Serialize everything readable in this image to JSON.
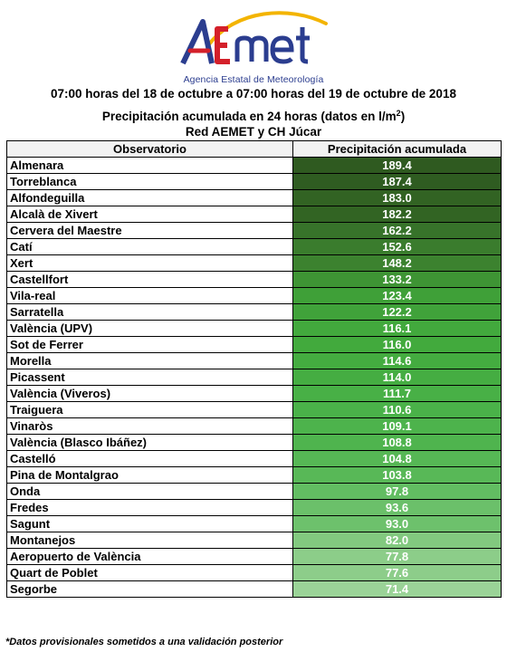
{
  "logo": {
    "text": "AEMet",
    "subtitle": "Agencia Estatal de Meteorología"
  },
  "header": {
    "line1": "07:00 horas del 18 de octubre a 07:00 horas del 19 de octubre de 2018",
    "line2_prefix": "Precipitación acumulada en 24 horas (datos en l/m",
    "line2_sup": "2",
    "line2_suffix": ")",
    "line3": "Red AEMET y CH Júcar"
  },
  "table": {
    "columns": [
      "Observatorio",
      "Precipitación acumulada"
    ],
    "rows": [
      {
        "name": "Almenara",
        "value": "189.4",
        "color": "#2f5a20"
      },
      {
        "name": "Torreblanca",
        "value": "187.4",
        "color": "#2f5c21"
      },
      {
        "name": "Alfondeguilla",
        "value": "183.0",
        "color": "#326323"
      },
      {
        "name": "Alcalà de Xivert",
        "value": "182.2",
        "color": "#326423"
      },
      {
        "name": "Cervera del Maestre",
        "value": "162.2",
        "color": "#37732a"
      },
      {
        "name": "Catí",
        "value": "152.6",
        "color": "#3a7c2d"
      },
      {
        "name": "Xert",
        "value": "148.2",
        "color": "#3c822f"
      },
      {
        "name": "Castellfort",
        "value": "133.2",
        "color": "#3e9434"
      },
      {
        "name": "Vila-real",
        "value": "123.4",
        "color": "#3fa038"
      },
      {
        "name": "Sarratella",
        "value": "122.2",
        "color": "#40a23a"
      },
      {
        "name": "València (UPV)",
        "value": "116.1",
        "color": "#42a93d"
      },
      {
        "name": "Sot de Ferrer",
        "value": "116.0",
        "color": "#42aa3d"
      },
      {
        "name": "Morella",
        "value": "114.6",
        "color": "#44ac40"
      },
      {
        "name": "Picassent",
        "value": "114.0",
        "color": "#45ad42"
      },
      {
        "name": "València (Viveros)",
        "value": "111.7",
        "color": "#48b046"
      },
      {
        "name": "Traiguera",
        "value": "110.6",
        "color": "#4ab249"
      },
      {
        "name": "Vinaròs",
        "value": "109.1",
        "color": "#4db34c"
      },
      {
        "name": "València (Blasco Ibáñez)",
        "value": "108.8",
        "color": "#4fb44e"
      },
      {
        "name": "Castelló",
        "value": "104.8",
        "color": "#56b755"
      },
      {
        "name": "Pina de Montalgrao",
        "value": "103.8",
        "color": "#58b857"
      },
      {
        "name": "Onda",
        "value": "97.8",
        "color": "#62bd62"
      },
      {
        "name": "Fredes",
        "value": "93.6",
        "color": "#6bc06a"
      },
      {
        "name": "Sagunt",
        "value": "93.0",
        "color": "#6dc16c"
      },
      {
        "name": "Montanejos",
        "value": "82.0",
        "color": "#82c97f"
      },
      {
        "name": "Aeropuerto de València",
        "value": "77.8",
        "color": "#8ccd89"
      },
      {
        "name": "Quart de Poblet",
        "value": "77.6",
        "color": "#8dcd8a"
      },
      {
        "name": "Segorbe",
        "value": "71.4",
        "color": "#9ad397"
      }
    ]
  },
  "footnote": "*Datos provisionales sometidos a una validación posterior"
}
